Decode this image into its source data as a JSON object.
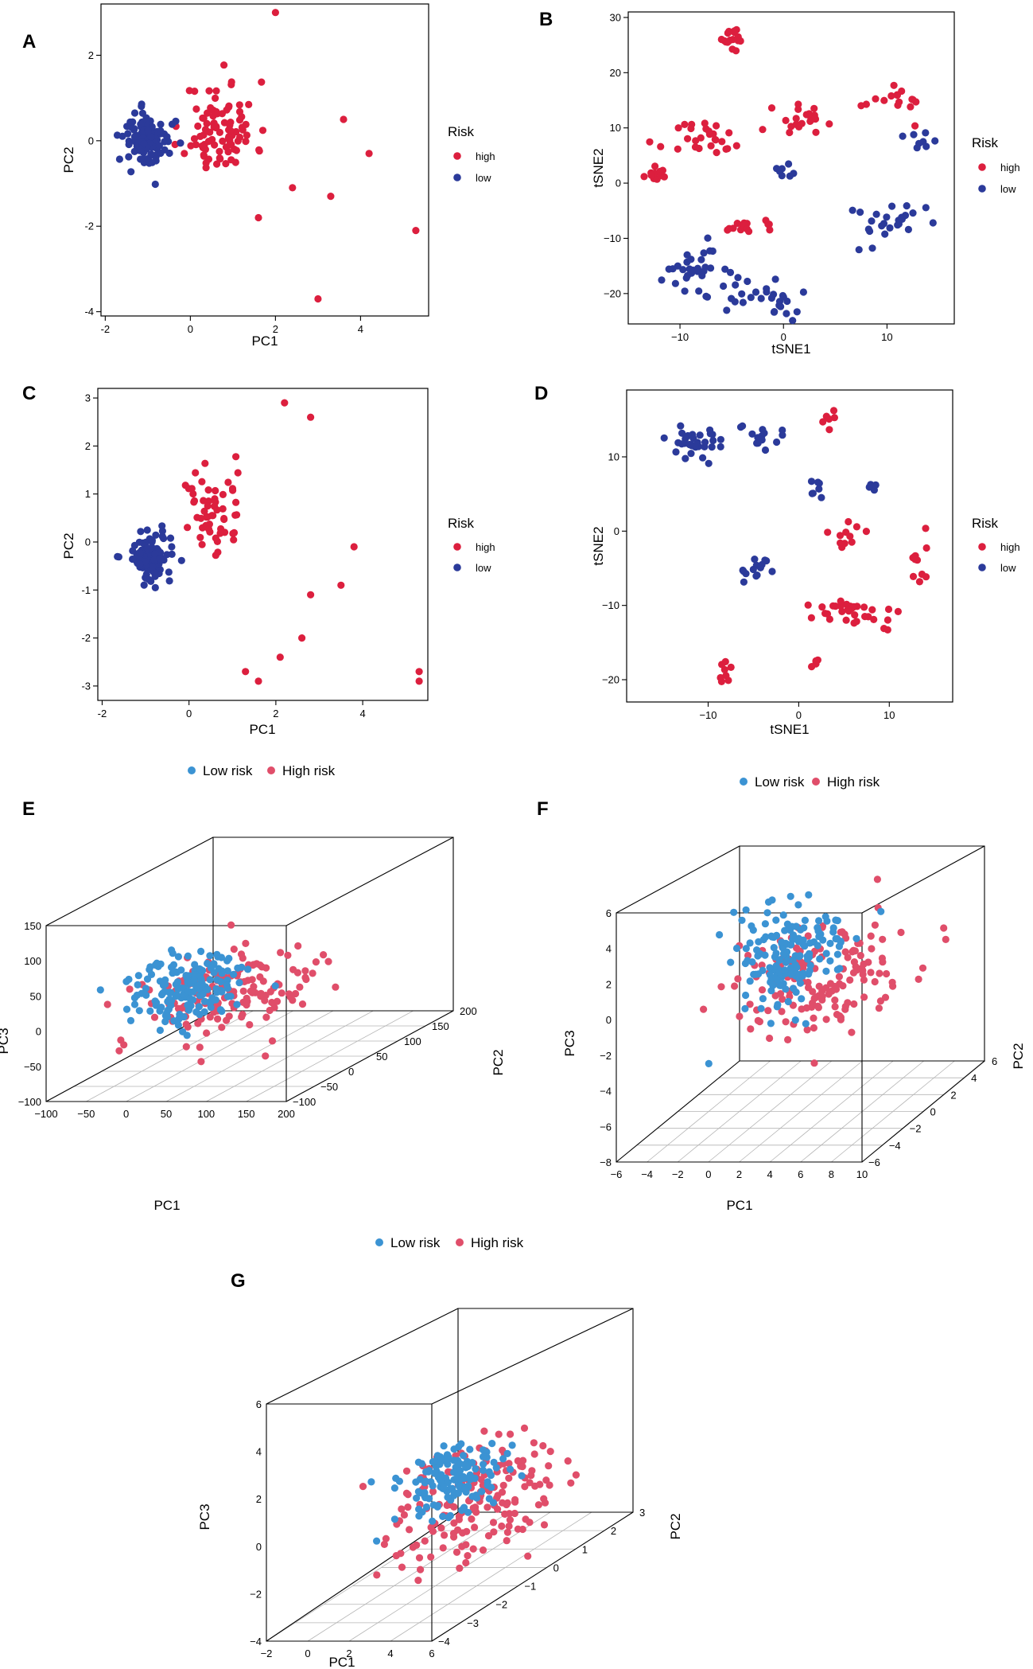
{
  "colors": {
    "high_2d": "#dc1f3e",
    "low_2d": "#2b3a9a",
    "low_3d": "#3b93d3",
    "high_3d": "#e04e6a",
    "axis": "#000000",
    "grid": "#b4b4b4"
  },
  "chart_data": [
    {
      "panel": "A",
      "type": "scatter",
      "title": "",
      "xlabel": "PC1",
      "ylabel": "PC2",
      "xlim": [
        -2.1,
        5.6
      ],
      "ylim": [
        -4.1,
        3.2
      ],
      "xticks": [
        "-2",
        "0",
        "2",
        "4"
      ],
      "xtick_values": [
        -2,
        0,
        2,
        4
      ],
      "yticks": [
        "-4",
        "-2",
        "0",
        "2"
      ],
      "ytick_values": [
        -4,
        -2,
        0,
        2
      ],
      "legend": {
        "title": "Risk",
        "items": [
          "high",
          "low"
        ]
      },
      "series": [
        {
          "name": "high",
          "n": 95,
          "seed": 11,
          "clusters": [
            {
              "cx": 0.7,
              "cy": 0.3,
              "sx": 0.7,
              "sy": 0.9,
              "w": 0.9
            }
          ],
          "points": [
            [
              2.0,
              3.0
            ],
            [
              5.3,
              -2.1
            ],
            [
              3.0,
              -3.7
            ],
            [
              4.2,
              -0.3
            ],
            [
              3.3,
              -1.3
            ],
            [
              3.6,
              0.5
            ],
            [
              1.6,
              -1.8
            ],
            [
              2.4,
              -1.1
            ]
          ]
        },
        {
          "name": "low",
          "n": 115,
          "seed": 12,
          "clusters": [
            {
              "cx": -1.0,
              "cy": 0.0,
              "sx": 0.45,
              "sy": 0.55,
              "w": 1
            }
          ],
          "points": []
        }
      ]
    },
    {
      "panel": "B",
      "type": "scatter",
      "title": "",
      "xlabel": "tSNE1",
      "ylabel": "tSNE2",
      "xlim": [
        -15,
        16.5
      ],
      "ylim": [
        -25.5,
        31
      ],
      "xticks": [
        "−10",
        "0",
        "10"
      ],
      "xtick_values": [
        -10,
        0,
        10
      ],
      "yticks": [
        "−20",
        "−10",
        "0",
        "10",
        "20",
        "30"
      ],
      "ytick_values": [
        -20,
        -10,
        0,
        10,
        20,
        30
      ],
      "legend": {
        "title": "Risk",
        "items": [
          "high",
          "low"
        ]
      },
      "series": [
        {
          "name": "high",
          "n": 110,
          "seed": 21,
          "clusters": [
            {
              "cx": -5,
              "cy": 26,
              "sx": 1.0,
              "sy": 2.0,
              "w": 0.15
            },
            {
              "cx": -7,
              "cy": 8,
              "sx": 3.2,
              "sy": 2.5,
              "w": 0.25
            },
            {
              "cx": 2,
              "cy": 11,
              "sx": 2.5,
              "sy": 2.5,
              "w": 0.2
            },
            {
              "cx": 11,
              "cy": 15,
              "sx": 2.0,
              "sy": 2.5,
              "w": 0.15
            },
            {
              "cx": -4,
              "cy": -8,
              "sx": 3.0,
              "sy": 1.2,
              "w": 0.15
            },
            {
              "cx": -12,
              "cy": 1.5,
              "sx": 1.2,
              "sy": 1.0,
              "w": 0.1
            }
          ],
          "points": []
        },
        {
          "name": "low",
          "n": 100,
          "seed": 22,
          "clusters": [
            {
              "cx": -9,
              "cy": -16,
              "sx": 2.5,
              "sy": 4.0,
              "w": 0.3
            },
            {
              "cx": -2,
              "cy": -20,
              "sx": 3.0,
              "sy": 3.0,
              "w": 0.3
            },
            {
              "cx": 10,
              "cy": -7,
              "sx": 3.0,
              "sy": 3.0,
              "w": 0.25
            },
            {
              "cx": 13,
              "cy": 7,
              "sx": 1.2,
              "sy": 1.5,
              "w": 0.08
            },
            {
              "cx": 0,
              "cy": 2,
              "sx": 1.0,
              "sy": 1.0,
              "w": 0.07
            }
          ],
          "points": []
        }
      ]
    },
    {
      "panel": "C",
      "type": "scatter",
      "title": "",
      "xlabel": "PC1",
      "ylabel": "PC2",
      "xlim": [
        -2.1,
        5.5
      ],
      "ylim": [
        -3.3,
        3.2
      ],
      "xticks": [
        "-2",
        "0",
        "2",
        "4"
      ],
      "xtick_values": [
        -2,
        0,
        2,
        4
      ],
      "yticks": [
        "-3",
        "-2",
        "-1",
        "0",
        "1",
        "2",
        "3"
      ],
      "ytick_values": [
        -3,
        -2,
        -1,
        0,
        1,
        2,
        3
      ],
      "legend": {
        "title": "Risk",
        "items": [
          "high",
          "low"
        ]
      },
      "series": [
        {
          "name": "high",
          "n": 55,
          "seed": 31,
          "clusters": [
            {
              "cx": 0.5,
              "cy": 0.6,
              "sx": 0.6,
              "sy": 0.8,
              "w": 1
            }
          ],
          "points": [
            [
              2.2,
              2.9
            ],
            [
              2.8,
              2.6
            ],
            [
              5.3,
              -2.7
            ],
            [
              5.3,
              -2.9
            ],
            [
              3.8,
              -0.1
            ],
            [
              3.5,
              -0.9
            ],
            [
              2.6,
              -2.0
            ],
            [
              2.1,
              -2.4
            ],
            [
              1.3,
              -2.7
            ],
            [
              1.6,
              -2.9
            ],
            [
              2.8,
              -1.1
            ]
          ]
        },
        {
          "name": "low",
          "n": 95,
          "seed": 32,
          "clusters": [
            {
              "cx": -0.9,
              "cy": -0.3,
              "sx": 0.45,
              "sy": 0.45,
              "w": 1
            }
          ],
          "points": []
        }
      ]
    },
    {
      "panel": "D",
      "type": "scatter",
      "title": "",
      "xlabel": "tSNE1",
      "ylabel": "tSNE2",
      "xlim": [
        -19,
        17
      ],
      "ylim": [
        -23,
        19
      ],
      "xticks": [
        "−10",
        "0",
        "10"
      ],
      "xtick_values": [
        -10,
        0,
        10
      ],
      "yticks": [
        "−20",
        "−10",
        "0",
        "10"
      ],
      "ytick_values": [
        -20,
        -10,
        0,
        10
      ],
      "legend": {
        "title": "Risk",
        "items": [
          "high",
          "low"
        ]
      },
      "series": [
        {
          "name": "high",
          "n": 75,
          "seed": 41,
          "clusters": [
            {
              "cx": 6,
              "cy": -11,
              "sx": 5.0,
              "sy": 1.5,
              "w": 0.45
            },
            {
              "cx": 14,
              "cy": -4,
              "sx": 1.5,
              "sy": 3.0,
              "w": 0.15
            },
            {
              "cx": 6,
              "cy": -0.5,
              "sx": 2.0,
              "sy": 1.5,
              "w": 0.15
            },
            {
              "cx": -8,
              "cy": -19,
              "sx": 0.7,
              "sy": 1.2,
              "w": 0.1
            },
            {
              "cx": 3,
              "cy": 15,
              "sx": 1.0,
              "sy": 1.5,
              "w": 0.08
            },
            {
              "cx": 2,
              "cy": -17.5,
              "sx": 0.6,
              "sy": 0.6,
              "w": 0.07
            }
          ],
          "points": []
        },
        {
          "name": "low",
          "n": 70,
          "seed": 42,
          "clusters": [
            {
              "cx": -12,
              "cy": 12,
              "sx": 3.0,
              "sy": 1.8,
              "w": 0.45
            },
            {
              "cx": -4,
              "cy": 13,
              "sx": 2.5,
              "sy": 1.5,
              "w": 0.2
            },
            {
              "cx": -5,
              "cy": -5,
              "sx": 2.5,
              "sy": 1.5,
              "w": 0.2
            },
            {
              "cx": 2,
              "cy": 5,
              "sx": 1.0,
              "sy": 3.0,
              "w": 0.1
            },
            {
              "cx": 8,
              "cy": 6,
              "sx": 0.5,
              "sy": 0.5,
              "w": 0.05
            }
          ],
          "points": []
        }
      ]
    },
    {
      "panel": "E",
      "type": "scatter3d",
      "title": "",
      "xlabel": "PC1",
      "ylabel": "PC2",
      "zlabel": "PC3",
      "xticks": [
        "−100",
        "−50",
        "0",
        "50",
        "100",
        "150",
        "200"
      ],
      "yticks": [
        "−100",
        "−50",
        "0",
        "50",
        "100",
        "150",
        "200"
      ],
      "zticks": [
        "−100",
        "−50",
        "0",
        "50",
        "100",
        "150"
      ],
      "legend": {
        "items": [
          "Low risk",
          "High risk"
        ]
      },
      "series": [
        {
          "name": "Low risk",
          "n": 170,
          "seed": 51,
          "clusters": [
            {
              "cx": 0,
              "cy": 0,
              "sx": 1,
              "sy": 1,
              "w": 1
            }
          ],
          "points": []
        },
        {
          "name": "High risk",
          "n": 150,
          "seed": 52,
          "clusters": [
            {
              "cx": 0,
              "cy": 0,
              "sx": 1,
              "sy": 1,
              "w": 1
            }
          ],
          "points": []
        }
      ]
    },
    {
      "panel": "F",
      "type": "scatter3d",
      "title": "",
      "xlabel": "PC1",
      "ylabel": "PC2",
      "zlabel": "PC3",
      "xticks": [
        "−6",
        "−4",
        "−2",
        "0",
        "2",
        "4",
        "6",
        "8",
        "10"
      ],
      "yticks": [
        "−6",
        "−4",
        "−2",
        "0",
        "2",
        "4",
        "6"
      ],
      "zticks": [
        "−8",
        "−6",
        "−4",
        "−2",
        "0",
        "2",
        "4",
        "6"
      ],
      "legend": {
        "items": [
          "Low risk",
          "High risk"
        ]
      },
      "series": [
        {
          "name": "Low risk",
          "n": 160,
          "seed": 61,
          "clusters": [
            {
              "cx": 0,
              "cy": 0,
              "sx": 1,
              "sy": 1,
              "w": 1
            }
          ],
          "points": []
        },
        {
          "name": "High risk",
          "n": 160,
          "seed": 62,
          "clusters": [
            {
              "cx": 0,
              "cy": 0,
              "sx": 1,
              "sy": 1,
              "w": 1
            }
          ],
          "points": []
        }
      ]
    },
    {
      "panel": "G",
      "type": "scatter3d",
      "title": "",
      "xlabel": "PC1",
      "ylabel": "PC2",
      "zlabel": "PC3",
      "xticks": [
        "−2",
        "0",
        "2",
        "4",
        "6"
      ],
      "yticks": [
        "−4",
        "−3",
        "−2",
        "−1",
        "0",
        "1",
        "2",
        "3"
      ],
      "zticks": [
        "−4",
        "−2",
        "0",
        "2",
        "4",
        "6"
      ],
      "series": [
        {
          "name": "Low risk",
          "n": 150,
          "seed": 71,
          "clusters": [
            {
              "cx": 0,
              "cy": 0,
              "sx": 1,
              "sy": 1,
              "w": 1
            }
          ],
          "points": []
        },
        {
          "name": "High risk",
          "n": 170,
          "seed": 72,
          "clusters": [
            {
              "cx": 0,
              "cy": 0,
              "sx": 1,
              "sy": 1,
              "w": 1
            }
          ],
          "points": []
        }
      ]
    }
  ]
}
